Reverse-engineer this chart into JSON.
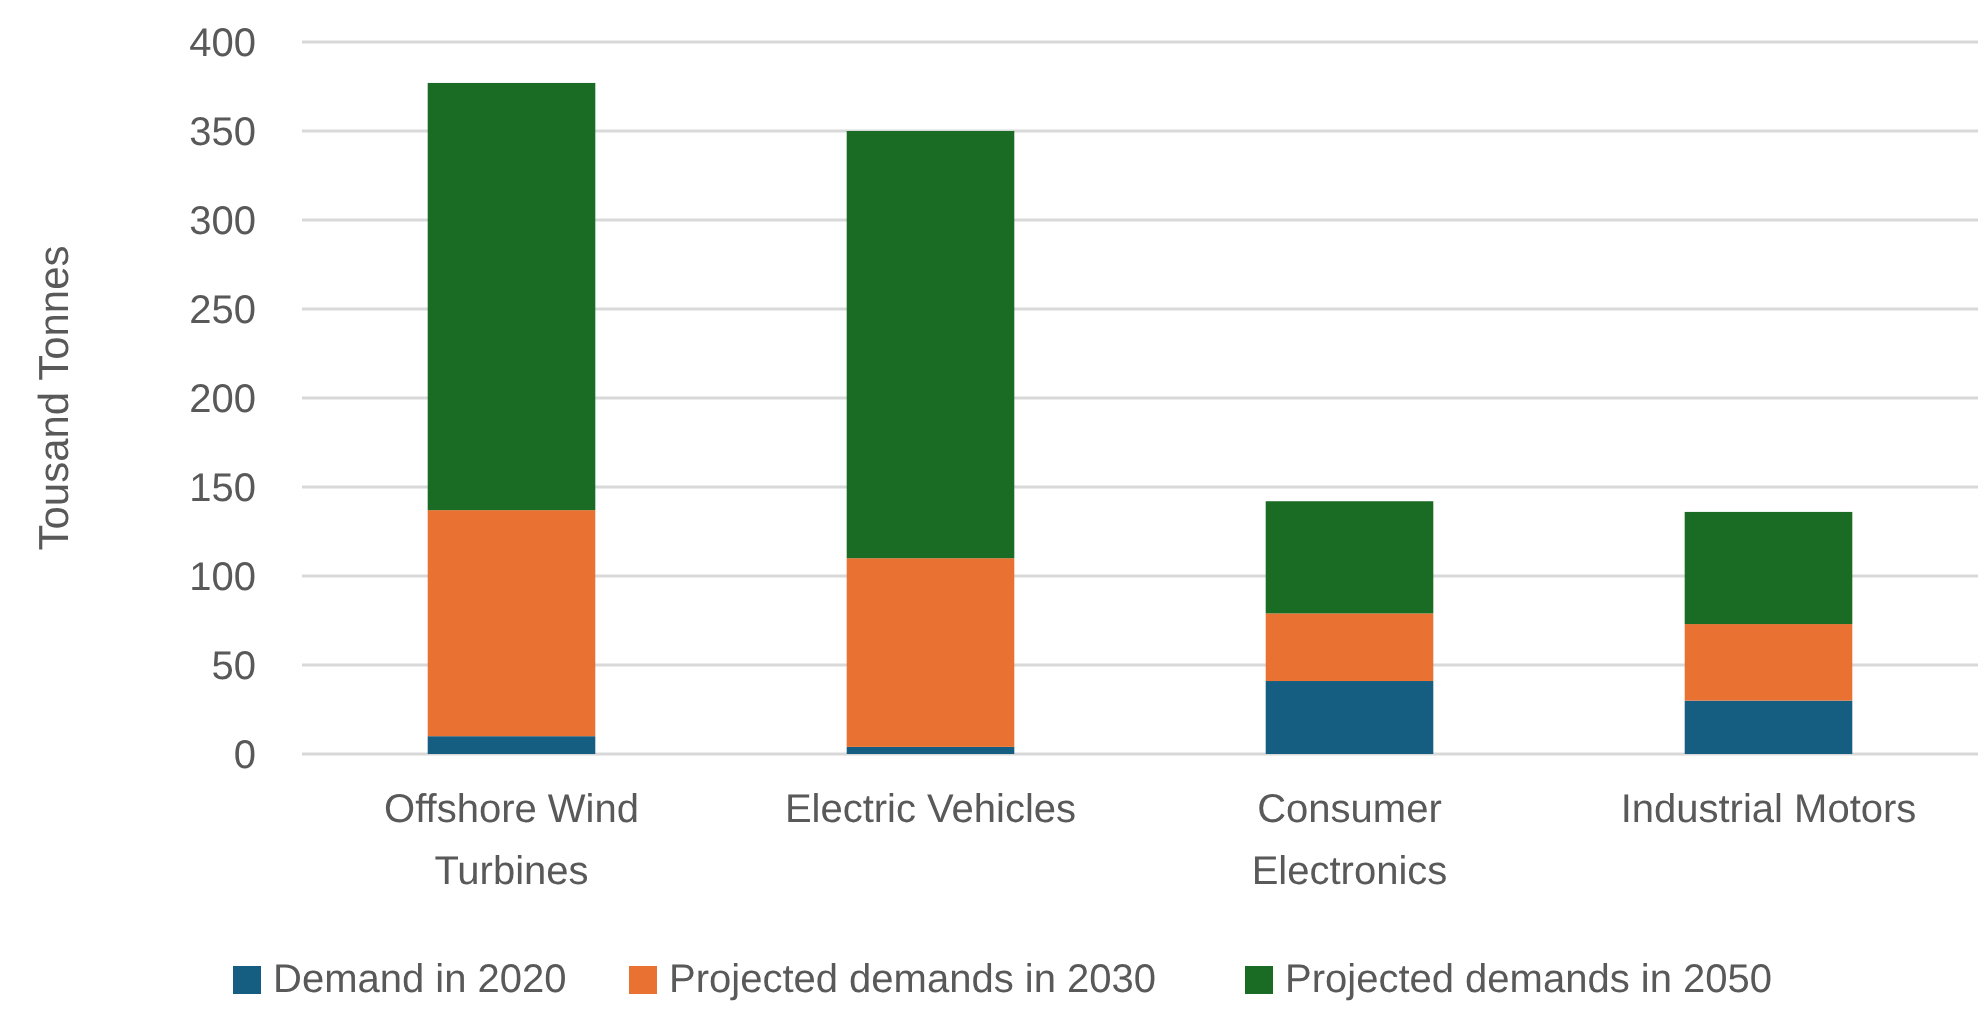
{
  "chart_data": {
    "type": "bar",
    "stacked": true,
    "ylabel": "Tousand Tonnes",
    "categories": [
      "Offshore Wind Turbines",
      "Electric Vehicles",
      "Consumer Electronics",
      "Industrial Motors"
    ],
    "series": [
      {
        "name": "Demand in 2020",
        "color": "#155e82",
        "values": [
          10,
          4,
          41,
          30
        ]
      },
      {
        "name": "Projected demands in 2030",
        "color": "#e97132",
        "values": [
          127,
          106,
          38,
          43
        ]
      },
      {
        "name": "Projected demands in 2050",
        "color": "#1a6b24",
        "values": [
          240,
          240,
          63,
          63
        ]
      }
    ],
    "ylim": [
      0,
      400
    ],
    "yticks": [
      0,
      50,
      100,
      150,
      200,
      250,
      300,
      350,
      400
    ],
    "grid": "y",
    "legend": "bottom"
  }
}
